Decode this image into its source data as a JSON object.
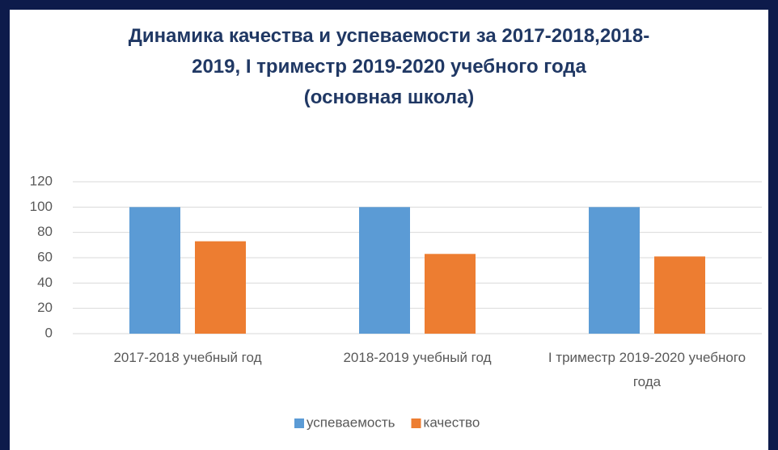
{
  "chart_data": {
    "type": "bar",
    "title": "Динамика качества и успеваемости за 2017-2018,2018-2019, I триместр 2019-2020 учебного года\n(основная школа)",
    "categories": [
      "2017-2018 учебный год",
      "2018-2019 учебный год",
      "I триместр 2019-2020 учебного года"
    ],
    "series": [
      {
        "name": "успеваемость",
        "color": "#5b9bd5",
        "values": [
          100,
          100,
          100
        ]
      },
      {
        "name": "качество",
        "color": "#ed7d31",
        "values": [
          73,
          63,
          61
        ]
      }
    ],
    "ylim": [
      0,
      120
    ],
    "yticks": [
      0,
      20,
      40,
      60,
      80,
      100,
      120
    ],
    "grid": true,
    "legend": "bottom"
  }
}
